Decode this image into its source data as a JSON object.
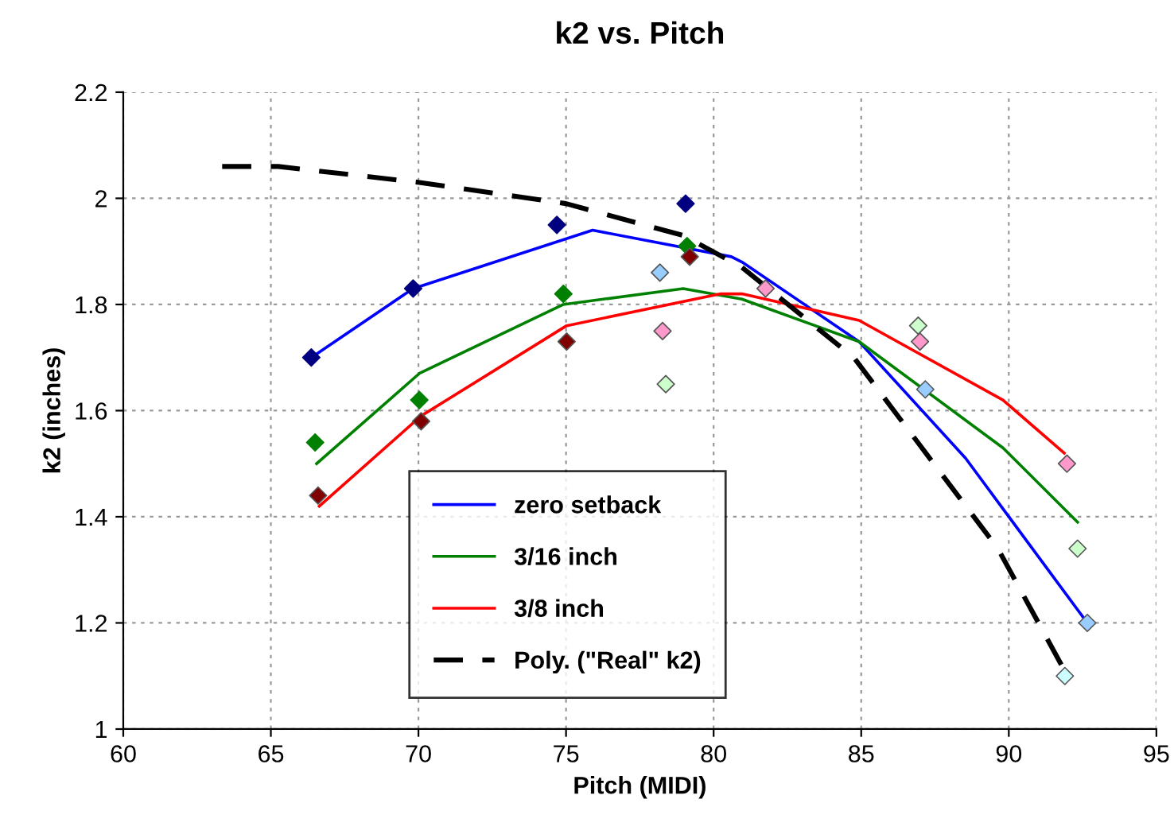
{
  "chart_data": {
    "type": "scatter",
    "title": "k2 vs. Pitch",
    "xlabel": "Pitch (MIDI)",
    "ylabel": "k2 (inches)",
    "xlim": [
      60,
      95
    ],
    "xticks": [
      60,
      65,
      70,
      75,
      80,
      85,
      90,
      95
    ],
    "ylim": [
      1,
      2.2
    ],
    "yticks": [
      1,
      1.2,
      1.4,
      1.6,
      1.8,
      2,
      2.2
    ],
    "grid": true,
    "legend": "bottom",
    "marker": "diamond",
    "series": [
      {
        "color": "#000080",
        "x": [
          66.37,
          69.82,
          74.69,
          79.05
        ],
        "values": [
          1.7,
          1.83,
          1.95,
          1.99
        ]
      },
      {
        "color": "#99ccff",
        "x": [
          78.18,
          87.17,
          92.66
        ],
        "values": [
          1.86,
          1.64,
          1.2
        ]
      },
      {
        "color": "#008000",
        "x": [
          66.5,
          70.03,
          74.91,
          79.1
        ],
        "values": [
          1.54,
          1.62,
          1.82,
          1.91
        ]
      },
      {
        "color": "#ccffcc",
        "x": [
          78.38,
          86.93,
          92.33
        ],
        "values": [
          1.65,
          1.76,
          1.34
        ]
      },
      {
        "color": "#800000",
        "x": [
          66.6,
          70.09,
          75.02,
          79.19
        ],
        "values": [
          1.44,
          1.58,
          1.73,
          1.89
        ]
      },
      {
        "color": "#ff99cc",
        "x": [
          78.27,
          81.76,
          86.99,
          91.97
        ],
        "values": [
          1.75,
          1.83,
          1.73,
          1.5
        ]
      },
      {
        "color": "#ccffff",
        "x": [
          91.9
        ],
        "values": [
          1.1
        ]
      },
      {
        "name": "zero setback",
        "type": "line",
        "color": "#0000ff",
        "marker": "none",
        "line_style": "solid",
        "x": [
          66.37,
          69.82,
          75.9,
          80.6,
          80.96,
          84.93,
          88.54,
          92.66
        ],
        "values": [
          1.7,
          1.83,
          1.94,
          1.89,
          1.88,
          1.73,
          1.51,
          1.2
        ]
      },
      {
        "name": "3/16 inch",
        "type": "line",
        "color": "#008000",
        "marker": "none",
        "line_style": "solid",
        "x": [
          66.55,
          70.03,
          74.91,
          78.97,
          80.96,
          84.93,
          89.8,
          92.33
        ],
        "values": [
          1.5,
          1.67,
          1.8,
          1.83,
          1.81,
          1.73,
          1.53,
          1.39
        ]
      },
      {
        "name": "3/8 inch",
        "type": "line",
        "color": "#ff0000",
        "marker": "none",
        "line_style": "solid",
        "x": [
          66.64,
          70.09,
          75.02,
          80.24,
          80.96,
          84.93,
          89.8,
          91.88
        ],
        "values": [
          1.42,
          1.59,
          1.76,
          1.82,
          1.82,
          1.77,
          1.62,
          1.52
        ]
      },
      {
        "name": "Poly. (\"Real\" k2)",
        "type": "line",
        "color": "#000000",
        "marker": "none",
        "line_style": "dashed",
        "x": [
          63.35,
          65.25,
          70.03,
          75.0,
          78.97,
          80.96,
          84.75,
          89.63,
          91.89
        ],
        "values": [
          2.06,
          2.06,
          2.03,
          1.99,
          1.93,
          1.87,
          1.7,
          1.34,
          1.11
        ]
      }
    ]
  }
}
